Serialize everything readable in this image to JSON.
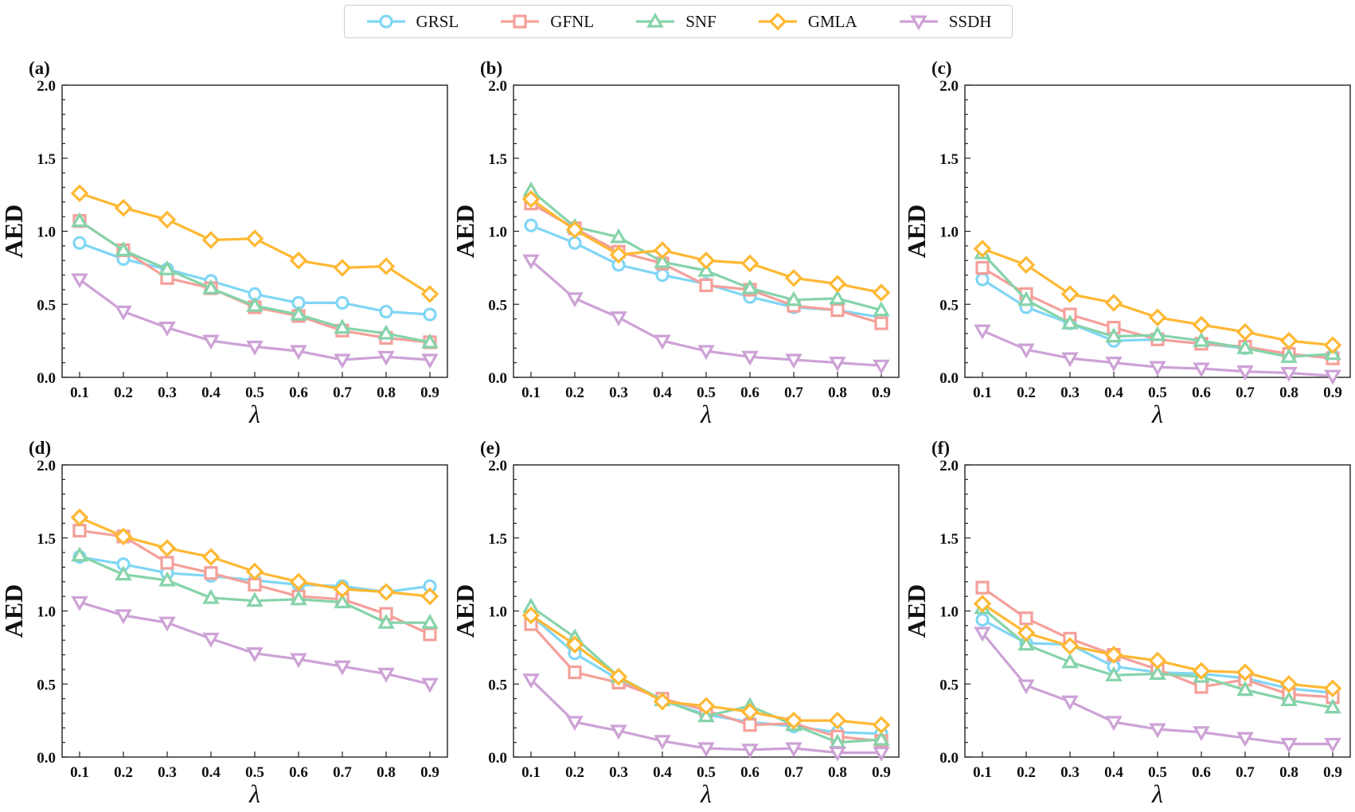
{
  "legend": [
    {
      "name": "GRSL",
      "color": "#80D6F5",
      "marker": "circle"
    },
    {
      "name": "GFNL",
      "color": "#F4A09A",
      "marker": "square"
    },
    {
      "name": "SNF",
      "color": "#86D3AA",
      "marker": "triangle-up"
    },
    {
      "name": "GMLA",
      "color": "#FFB833",
      "marker": "diamond"
    },
    {
      "name": "SSDH",
      "color": "#CDA2D6",
      "marker": "triangle-down"
    }
  ],
  "chart_data": [
    {
      "panel": "(a)",
      "type": "line",
      "xlabel": "λ",
      "ylabel": "AED",
      "ylim": [
        0,
        2.0
      ],
      "x": [
        0.1,
        0.2,
        0.3,
        0.4,
        0.5,
        0.6,
        0.7,
        0.8,
        0.9
      ],
      "series": [
        {
          "name": "GRSL",
          "values": [
            0.92,
            0.81,
            0.74,
            0.66,
            0.57,
            0.51,
            0.51,
            0.45,
            0.43
          ]
        },
        {
          "name": "GFNL",
          "values": [
            1.07,
            0.87,
            0.68,
            0.61,
            0.48,
            0.42,
            0.32,
            0.27,
            0.24
          ]
        },
        {
          "name": "SNF",
          "values": [
            1.07,
            0.87,
            0.74,
            0.61,
            0.49,
            0.43,
            0.34,
            0.3,
            0.24
          ]
        },
        {
          "name": "GMLA",
          "values": [
            1.26,
            1.16,
            1.08,
            0.94,
            0.95,
            0.8,
            0.75,
            0.76,
            0.57
          ]
        },
        {
          "name": "SSDH",
          "values": [
            0.67,
            0.45,
            0.34,
            0.25,
            0.21,
            0.18,
            0.12,
            0.14,
            0.12
          ]
        }
      ]
    },
    {
      "panel": "(b)",
      "type": "line",
      "xlabel": "λ",
      "ylabel": "AED",
      "ylim": [
        0,
        2.0
      ],
      "x": [
        0.1,
        0.2,
        0.3,
        0.4,
        0.5,
        0.6,
        0.7,
        0.8,
        0.9
      ],
      "series": [
        {
          "name": "GRSL",
          "values": [
            1.04,
            0.92,
            0.77,
            0.7,
            0.64,
            0.55,
            0.48,
            0.46,
            0.41
          ]
        },
        {
          "name": "GFNL",
          "values": [
            1.19,
            1.02,
            0.86,
            0.78,
            0.63,
            0.6,
            0.49,
            0.46,
            0.37
          ]
        },
        {
          "name": "SNF",
          "values": [
            1.28,
            1.03,
            0.96,
            0.79,
            0.73,
            0.61,
            0.53,
            0.54,
            0.46
          ]
        },
        {
          "name": "GMLA",
          "values": [
            1.22,
            1.01,
            0.84,
            0.87,
            0.8,
            0.78,
            0.68,
            0.64,
            0.58
          ]
        },
        {
          "name": "SSDH",
          "values": [
            0.8,
            0.54,
            0.41,
            0.25,
            0.18,
            0.14,
            0.12,
            0.1,
            0.08
          ]
        }
      ]
    },
    {
      "panel": "(c)",
      "type": "line",
      "xlabel": "λ",
      "ylabel": "AED",
      "ylim": [
        0,
        2.0
      ],
      "x": [
        0.1,
        0.2,
        0.3,
        0.4,
        0.5,
        0.6,
        0.7,
        0.8,
        0.9
      ],
      "series": [
        {
          "name": "GRSL",
          "values": [
            0.67,
            0.48,
            0.37,
            0.25,
            0.26,
            0.23,
            0.2,
            0.15,
            0.15
          ]
        },
        {
          "name": "GFNL",
          "values": [
            0.75,
            0.57,
            0.43,
            0.34,
            0.26,
            0.23,
            0.21,
            0.16,
            0.13
          ]
        },
        {
          "name": "SNF",
          "values": [
            0.85,
            0.53,
            0.37,
            0.28,
            0.29,
            0.25,
            0.2,
            0.14,
            0.16
          ]
        },
        {
          "name": "GMLA",
          "values": [
            0.88,
            0.77,
            0.57,
            0.51,
            0.41,
            0.36,
            0.31,
            0.25,
            0.22
          ]
        },
        {
          "name": "SSDH",
          "values": [
            0.32,
            0.19,
            0.13,
            0.1,
            0.07,
            0.06,
            0.04,
            0.03,
            0.01
          ]
        }
      ]
    },
    {
      "panel": "(d)",
      "type": "line",
      "xlabel": "λ",
      "ylabel": "AED",
      "ylim": [
        0,
        2.0
      ],
      "x": [
        0.1,
        0.2,
        0.3,
        0.4,
        0.5,
        0.6,
        0.7,
        0.8,
        0.9
      ],
      "series": [
        {
          "name": "GRSL",
          "values": [
            1.37,
            1.32,
            1.26,
            1.24,
            1.21,
            1.18,
            1.17,
            1.13,
            1.17
          ]
        },
        {
          "name": "GFNL",
          "values": [
            1.55,
            1.51,
            1.33,
            1.26,
            1.18,
            1.1,
            1.08,
            0.98,
            0.84
          ]
        },
        {
          "name": "SNF",
          "values": [
            1.38,
            1.25,
            1.21,
            1.09,
            1.07,
            1.08,
            1.06,
            0.92,
            0.92
          ]
        },
        {
          "name": "GMLA",
          "values": [
            1.64,
            1.51,
            1.43,
            1.37,
            1.27,
            1.2,
            1.15,
            1.13,
            1.1
          ]
        },
        {
          "name": "SSDH",
          "values": [
            1.06,
            0.97,
            0.92,
            0.81,
            0.71,
            0.67,
            0.62,
            0.57,
            0.5
          ]
        }
      ]
    },
    {
      "panel": "(e)",
      "type": "line",
      "xlabel": "λ",
      "ylabel": "AED",
      "ylim": [
        0,
        2.0
      ],
      "x": [
        0.1,
        0.2,
        0.3,
        0.4,
        0.5,
        0.6,
        0.7,
        0.8,
        0.9
      ],
      "series": [
        {
          "name": "GRSL",
          "values": [
            0.97,
            0.71,
            0.53,
            0.39,
            0.29,
            0.24,
            0.21,
            0.17,
            0.16
          ]
        },
        {
          "name": "GFNL",
          "values": [
            0.91,
            0.58,
            0.51,
            0.4,
            0.32,
            0.22,
            0.23,
            0.14,
            0.11
          ]
        },
        {
          "name": "SNF",
          "values": [
            1.03,
            0.82,
            0.55,
            0.39,
            0.28,
            0.35,
            0.22,
            0.1,
            0.12
          ]
        },
        {
          "name": "GMLA",
          "values": [
            0.97,
            0.77,
            0.55,
            0.38,
            0.35,
            0.31,
            0.25,
            0.25,
            0.22
          ]
        },
        {
          "name": "SSDH",
          "values": [
            0.53,
            0.24,
            0.18,
            0.11,
            0.06,
            0.05,
            0.06,
            0.03,
            0.03
          ]
        }
      ]
    },
    {
      "panel": "(f)",
      "type": "line",
      "xlabel": "λ",
      "ylabel": "AED",
      "ylim": [
        0,
        2.0
      ],
      "x": [
        0.1,
        0.2,
        0.3,
        0.4,
        0.5,
        0.6,
        0.7,
        0.8,
        0.9
      ],
      "series": [
        {
          "name": "GRSL",
          "values": [
            0.94,
            0.78,
            0.77,
            0.62,
            0.58,
            0.57,
            0.54,
            0.47,
            0.44
          ]
        },
        {
          "name": "GFNL",
          "values": [
            1.16,
            0.95,
            0.81,
            0.7,
            0.6,
            0.48,
            0.53,
            0.43,
            0.41
          ]
        },
        {
          "name": "SNF",
          "values": [
            1.02,
            0.77,
            0.65,
            0.56,
            0.57,
            0.55,
            0.46,
            0.39,
            0.34
          ]
        },
        {
          "name": "GMLA",
          "values": [
            1.05,
            0.85,
            0.76,
            0.7,
            0.66,
            0.59,
            0.58,
            0.5,
            0.47
          ]
        },
        {
          "name": "SSDH",
          "values": [
            0.85,
            0.49,
            0.38,
            0.24,
            0.19,
            0.17,
            0.13,
            0.09,
            0.09
          ]
        }
      ]
    }
  ]
}
